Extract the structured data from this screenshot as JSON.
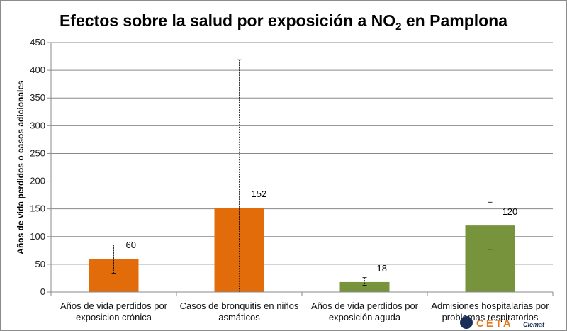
{
  "title": {
    "main_before": "Efectos sobre la salud por exposición a NO",
    "subscript": "2",
    "main_after": " en Pamplona"
  },
  "chart_data": {
    "type": "bar",
    "title": "Efectos sobre la salud por exposición a NO2 en Pamplona",
    "xlabel": "",
    "ylabel": "Años de vida perdidos o casos adicionales",
    "ylim": [
      0,
      450
    ],
    "yticks": [
      0,
      50,
      100,
      150,
      200,
      250,
      300,
      350,
      400,
      450
    ],
    "grid": true,
    "categories": [
      [
        "Años de vida perdidos por",
        "exposicion crónica"
      ],
      [
        "Casos de bronquitis en niños",
        "asmáticos"
      ],
      [
        "Años de vida perdidos por",
        "exposición aguda"
      ],
      [
        "Admisiones hospitalarias por",
        "problemas respiratorios"
      ]
    ],
    "values": [
      60,
      152,
      18,
      120
    ],
    "data_labels": [
      "60",
      "152",
      "18",
      "120"
    ],
    "error_low": [
      34,
      0,
      12,
      77
    ],
    "error_high": [
      85,
      419,
      26,
      162
    ],
    "colors": [
      "#e36c0a",
      "#e36c0a",
      "#77933c",
      "#77933c"
    ]
  },
  "logo": {
    "text": "CETA",
    "suffix": "Ciemat"
  }
}
